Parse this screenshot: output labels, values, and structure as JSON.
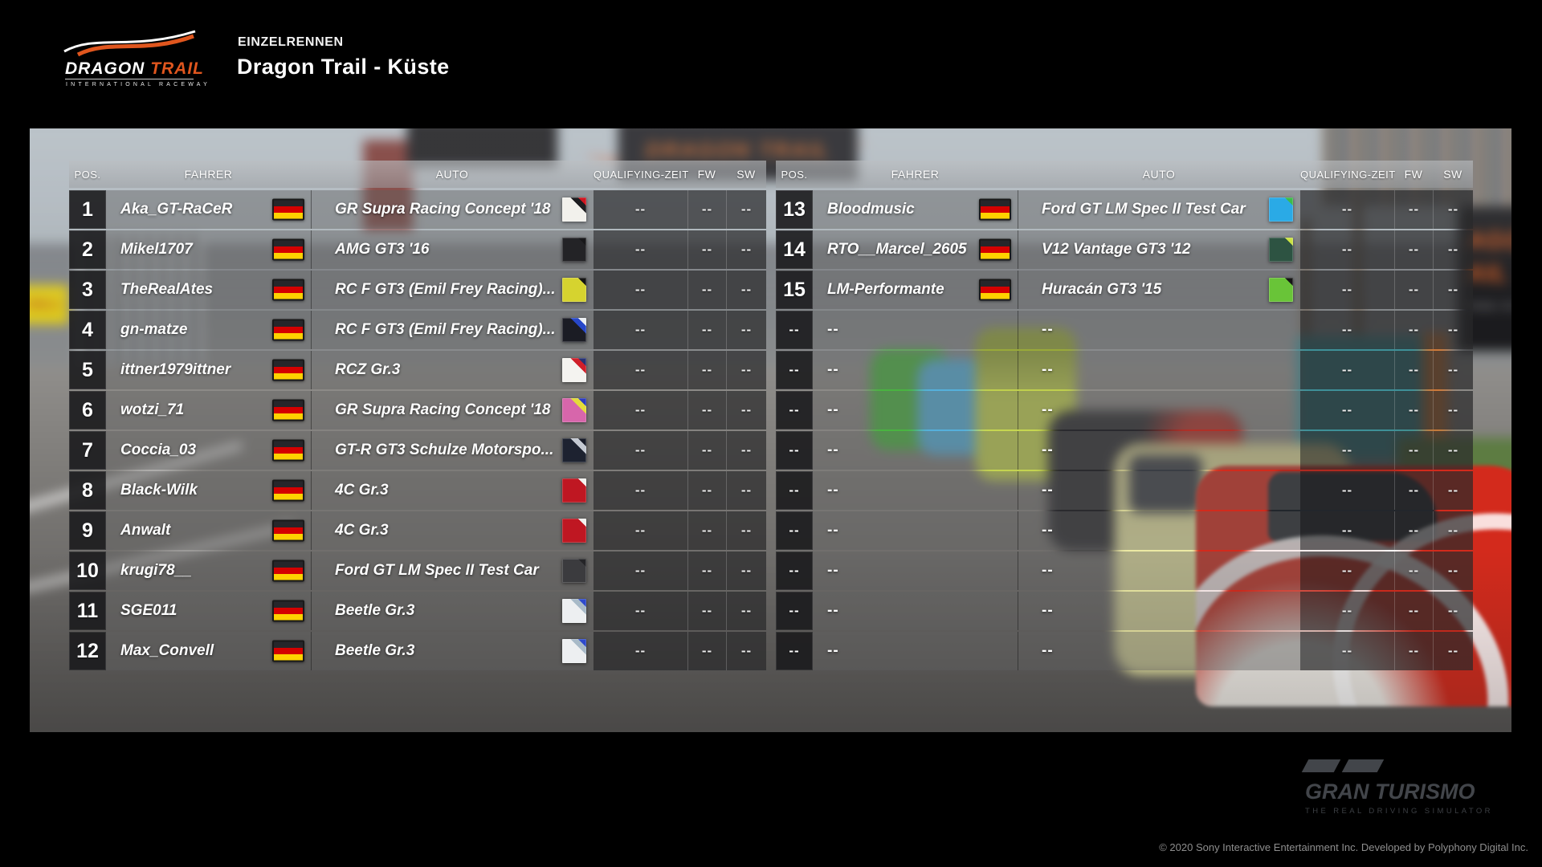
{
  "event": {
    "type": "EINZELRENNEN",
    "track": "Dragon Trail - Küste"
  },
  "track_logo": {
    "name_part1": "DRAGON",
    "name_part2": "TRAIL",
    "subtitle": "INTERNATIONAL RACEWAY"
  },
  "columns": {
    "pos": "POS.",
    "driver": "FAHRER",
    "car": "AUTO",
    "qualifying": "QUALIFYING-ZEIT",
    "fw": "FW",
    "sw": "SW"
  },
  "placeholder": "--",
  "flag_colors": {
    "de": [
      "#26262a",
      "#d40000",
      "#ffd200"
    ]
  },
  "tables": [
    {
      "rows": [
        {
          "pos": "1",
          "driver": "Aka_GT-RaCeR",
          "flag": "de",
          "car": "GR Supra Racing Concept '18",
          "chip": {
            "body": "#f2f1ec",
            "stripe": "#1d1d20",
            "corner": "#d01620"
          },
          "qualifying": "--",
          "fw": "--",
          "sw": "--"
        },
        {
          "pos": "2",
          "driver": "Mikel1707",
          "flag": "de",
          "car": "AMG GT3 '16",
          "chip": {
            "body": "#232326",
            "stripe": "#232326",
            "corner": "#18181a"
          },
          "qualifying": "--",
          "fw": "--",
          "sw": "--"
        },
        {
          "pos": "3",
          "driver": "TheRealAtes",
          "flag": "de",
          "car": "RC F GT3 (Emil Frey Racing)...",
          "chip": {
            "body": "#d6d32f",
            "stripe": "#d6d32f",
            "corner": "#141414"
          },
          "qualifying": "--",
          "fw": "--",
          "sw": "--"
        },
        {
          "pos": "4",
          "driver": "gn-matze",
          "flag": "de",
          "car": "RC F GT3 (Emil Frey Racing)...",
          "chip": {
            "body": "#1b1c24",
            "stripe": "#2747c8",
            "corner": "#eceff2"
          },
          "qualifying": "--",
          "fw": "--",
          "sw": "--"
        },
        {
          "pos": "5",
          "driver": "ittner1979ittner",
          "flag": "de",
          "car": "RCZ Gr.3",
          "chip": {
            "body": "#f4f3f0",
            "stripe": "#cf1f2a",
            "corner": "#273273"
          },
          "qualifying": "--",
          "fw": "--",
          "sw": "--"
        },
        {
          "pos": "6",
          "driver": "wotzi_71",
          "flag": "de",
          "car": "GR Supra Racing Concept '18",
          "chip": {
            "body": "#d766ab",
            "stripe": "#e3dc3a",
            "corner": "#2b3bc0"
          },
          "qualifying": "--",
          "fw": "--",
          "sw": "--"
        },
        {
          "pos": "7",
          "driver": "Coccia_03",
          "flag": "de",
          "car": "GT-R GT3 Schulze Motorspo...",
          "chip": {
            "body": "#1d2230",
            "stripe": "#c4c9d2",
            "corner": "#171b28"
          },
          "qualifying": "--",
          "fw": "--",
          "sw": "--"
        },
        {
          "pos": "8",
          "driver": "Black-Wilk",
          "flag": "de",
          "car": "4C Gr.3",
          "chip": {
            "body": "#bf1722",
            "stripe": "#bf1722",
            "corner": "#f2f1ee"
          },
          "qualifying": "--",
          "fw": "--",
          "sw": "--"
        },
        {
          "pos": "9",
          "driver": "Anwalt",
          "flag": "de",
          "car": "4C Gr.3",
          "chip": {
            "body": "#bf1722",
            "stripe": "#bf1722",
            "corner": "#f2f1ee"
          },
          "qualifying": "--",
          "fw": "--",
          "sw": "--"
        },
        {
          "pos": "10",
          "driver": "krugi78__",
          "flag": "de",
          "car": "Ford GT LM Spec II Test Car",
          "chip": {
            "body": "#3b3b3e",
            "stripe": "#3b3b3e",
            "corner": "#242427"
          },
          "qualifying": "--",
          "fw": "--",
          "sw": "--"
        },
        {
          "pos": "11",
          "driver": "SGE011",
          "flag": "de",
          "car": "Beetle Gr.3",
          "chip": {
            "body": "#edeff1",
            "stripe": "#a8bac8",
            "corner": "#2d49cc"
          },
          "qualifying": "--",
          "fw": "--",
          "sw": "--"
        },
        {
          "pos": "12",
          "driver": "Max_Convell",
          "flag": "de",
          "car": "Beetle Gr.3",
          "chip": {
            "body": "#edeff1",
            "stripe": "#a8bac8",
            "corner": "#2d49cc"
          },
          "qualifying": "--",
          "fw": "--",
          "sw": "--"
        }
      ]
    },
    {
      "rows": [
        {
          "pos": "13",
          "driver": "Bloodmusic",
          "flag": "de",
          "car": "Ford GT LM Spec II Test Car",
          "chip": {
            "body": "#2aaae6",
            "stripe": "#2aaae6",
            "corner": "#3dbb4a"
          },
          "qualifying": "--",
          "fw": "--",
          "sw": "--"
        },
        {
          "pos": "14",
          "driver": "RTO__Marcel_2605",
          "flag": "de",
          "car": "V12 Vantage GT3 '12",
          "chip": {
            "body": "#2d5342",
            "stripe": "#2d5342",
            "corner": "#cbe344"
          },
          "qualifying": "--",
          "fw": "--",
          "sw": "--"
        },
        {
          "pos": "15",
          "driver": "LM-Performante",
          "flag": "de",
          "car": "Huracán GT3 '15",
          "chip": {
            "body": "#69c438",
            "stripe": "#69c438",
            "corner": "#161616"
          },
          "qualifying": "--",
          "fw": "--",
          "sw": "--"
        },
        {
          "pos": "--",
          "driver": "--",
          "flag": null,
          "car": "--",
          "chip": null,
          "qualifying": "--",
          "fw": "--",
          "sw": "--"
        },
        {
          "pos": "--",
          "driver": "--",
          "flag": null,
          "car": "--",
          "chip": null,
          "qualifying": "--",
          "fw": "--",
          "sw": "--"
        },
        {
          "pos": "--",
          "driver": "--",
          "flag": null,
          "car": "--",
          "chip": null,
          "qualifying": "--",
          "fw": "--",
          "sw": "--"
        },
        {
          "pos": "--",
          "driver": "--",
          "flag": null,
          "car": "--",
          "chip": null,
          "qualifying": "--",
          "fw": "--",
          "sw": "--"
        },
        {
          "pos": "--",
          "driver": "--",
          "flag": null,
          "car": "--",
          "chip": null,
          "qualifying": "--",
          "fw": "--",
          "sw": "--"
        },
        {
          "pos": "--",
          "driver": "--",
          "flag": null,
          "car": "--",
          "chip": null,
          "qualifying": "--",
          "fw": "--",
          "sw": "--"
        },
        {
          "pos": "--",
          "driver": "--",
          "flag": null,
          "car": "--",
          "chip": null,
          "qualifying": "--",
          "fw": "--",
          "sw": "--"
        },
        {
          "pos": "--",
          "driver": "--",
          "flag": null,
          "car": "--",
          "chip": null,
          "qualifying": "--",
          "fw": "--",
          "sw": "--"
        },
        {
          "pos": "--",
          "driver": "--",
          "flag": null,
          "car": "--",
          "chip": null,
          "qualifying": "--",
          "fw": "--",
          "sw": "--"
        }
      ]
    }
  ],
  "scene_text": {
    "pirelli": "PIRELLI",
    "billboard": "DRAGON TRAIL",
    "right_board_line1": "AGO",
    "right_board_line2": "AIL",
    "right_board_sub": "TIONAL RA"
  },
  "footer": {
    "logo": "GRAN TURISMO",
    "tagline": "THE REAL DRIVING SIMULATOR",
    "copyright": "© 2020 Sony Interactive Entertainment Inc. Developed by Polyphony Digital Inc."
  }
}
